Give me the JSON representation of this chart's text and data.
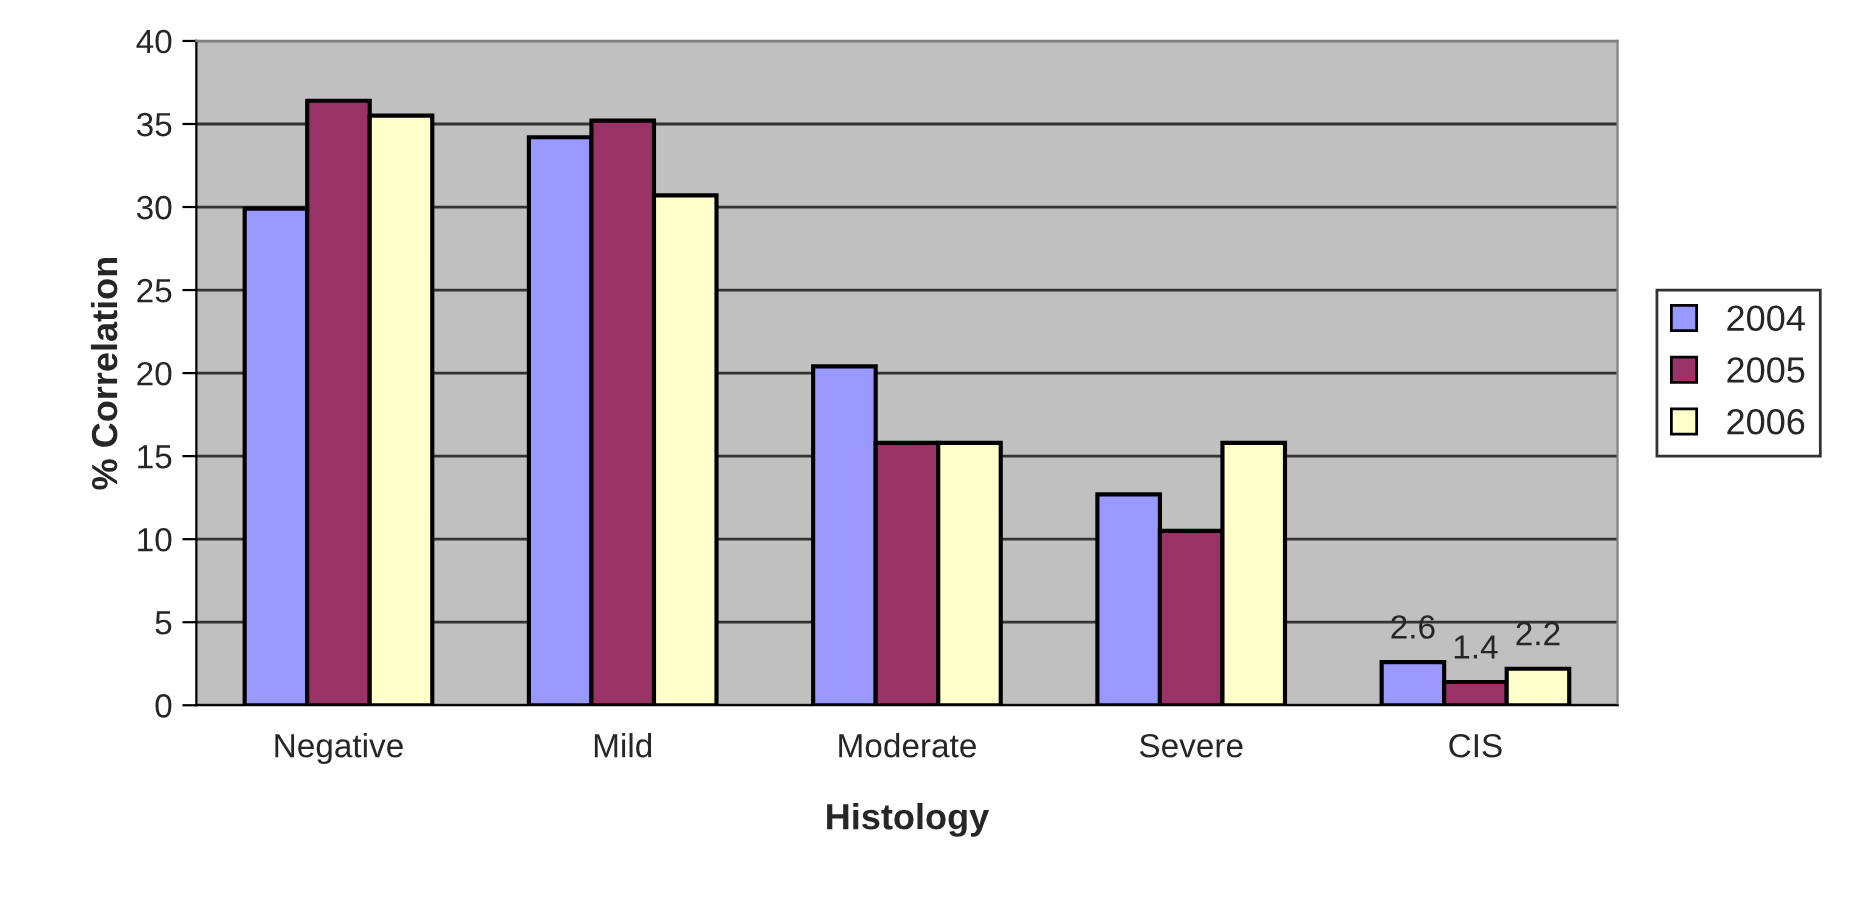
{
  "chart_data": {
    "type": "bar",
    "xlabel": "Histology",
    "ylabel": "% Correlation",
    "categories": [
      "Negative",
      "Mild",
      "Moderate",
      "Severe",
      "CIS"
    ],
    "series": [
      {
        "name": "2004",
        "color": "#9999ff",
        "values": [
          29.9,
          34.2,
          20.4,
          12.7,
          2.6
        ],
        "value_labels": [
          null,
          null,
          null,
          null,
          "2.6"
        ]
      },
      {
        "name": "2005",
        "color": "#993366",
        "values": [
          36.4,
          35.2,
          15.8,
          10.5,
          1.4
        ],
        "value_labels": [
          null,
          null,
          null,
          null,
          "1.4"
        ]
      },
      {
        "name": "2006",
        "color": "#ffffcc",
        "values": [
          35.5,
          30.7,
          15.8,
          15.8,
          2.2
        ],
        "value_labels": [
          null,
          null,
          null,
          null,
          "2.2"
        ]
      }
    ],
    "ylim": [
      0,
      40
    ],
    "yticks": [
      0,
      5,
      10,
      15,
      20,
      25,
      30,
      35,
      40
    ],
    "grid": "y",
    "legend": "right"
  }
}
